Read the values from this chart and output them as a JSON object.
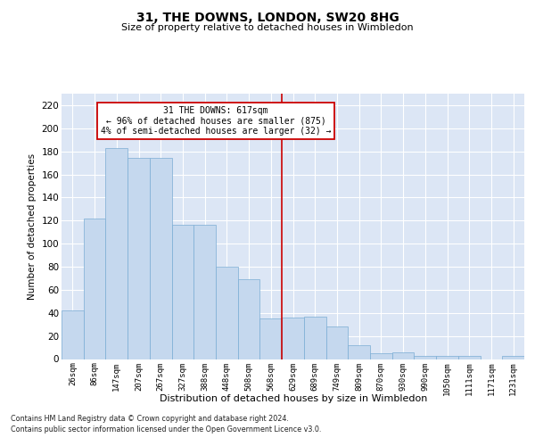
{
  "title": "31, THE DOWNS, LONDON, SW20 8HG",
  "subtitle": "Size of property relative to detached houses in Wimbledon",
  "xlabel": "Distribution of detached houses by size in Wimbledon",
  "ylabel": "Number of detached properties",
  "footnote1": "Contains HM Land Registry data © Crown copyright and database right 2024.",
  "footnote2": "Contains public sector information licensed under the Open Government Licence v3.0.",
  "categories": [
    "26sqm",
    "86sqm",
    "147sqm",
    "207sqm",
    "267sqm",
    "327sqm",
    "388sqm",
    "448sqm",
    "508sqm",
    "568sqm",
    "629sqm",
    "689sqm",
    "749sqm",
    "809sqm",
    "870sqm",
    "930sqm",
    "990sqm",
    "1050sqm",
    "1111sqm",
    "1171sqm",
    "1231sqm"
  ],
  "values": [
    42,
    122,
    183,
    174,
    174,
    116,
    116,
    80,
    69,
    35,
    36,
    37,
    28,
    12,
    5,
    6,
    3,
    3,
    3,
    0,
    3
  ],
  "bar_color": "#c5d8ee",
  "bar_edge_color": "#7aadd4",
  "vline_index": 10,
  "vline_color": "#cc0000",
  "annotation_label": "31 THE DOWNS: 617sqm",
  "annotation_line1": "← 96% of detached houses are smaller (875)",
  "annotation_line2": "4% of semi-detached houses are larger (32) →",
  "annotation_box_facecolor": "white",
  "annotation_box_edgecolor": "#cc0000",
  "background_color": "#dce6f5",
  "grid_color": "white",
  "ylim": [
    0,
    230
  ],
  "yticks": [
    0,
    20,
    40,
    60,
    80,
    100,
    120,
    140,
    160,
    180,
    200,
    220
  ]
}
